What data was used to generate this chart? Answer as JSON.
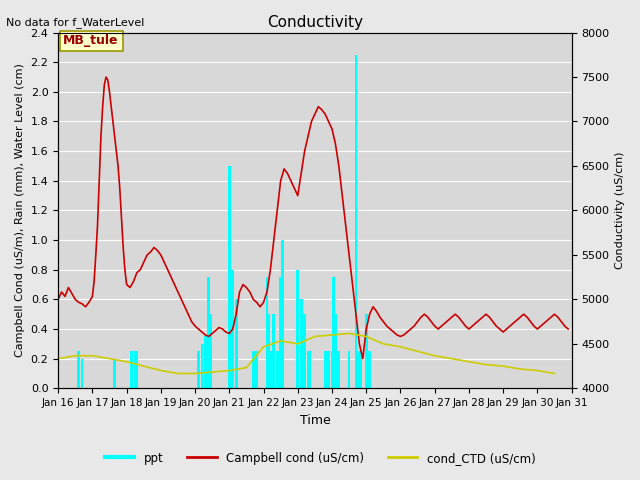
{
  "title": "Conductivity",
  "top_left_text": "No data for f_WaterLevel",
  "station_label": "MB_tule",
  "xlabel": "Time",
  "ylabel_left": "Campbell Cond (uS/m), Rain (mm), Water Level (cm)",
  "ylabel_right": "Conductivity (uS/cm)",
  "xlim": [
    0,
    15.0
  ],
  "ylim_left": [
    0,
    2.4
  ],
  "ylim_right": [
    4000,
    8000
  ],
  "xtick_labels": [
    "Jan 16",
    "Jan 17",
    "Jan 18",
    "Jan 19",
    "Jan 20",
    "Jan 21",
    "Jan 22",
    "Jan 23",
    "Jan 24",
    "Jan 25",
    "Jan 26",
    "Jan 27",
    "Jan 28",
    "Jan 29",
    "Jan 30",
    "Jan 31"
  ],
  "xtick_positions": [
    0,
    1,
    2,
    3,
    4,
    5,
    6,
    7,
    8,
    9,
    10,
    11,
    12,
    13,
    14,
    15
  ],
  "yticks_left": [
    0.0,
    0.2,
    0.4,
    0.6,
    0.8,
    1.0,
    1.2,
    1.4,
    1.6,
    1.8,
    2.0,
    2.2,
    2.4
  ],
  "yticks_right": [
    4000,
    4500,
    5000,
    5500,
    6000,
    6500,
    7000,
    7500,
    8000
  ],
  "bg_color": "#e8e8e8",
  "plot_bg_color": "#d8d8d8",
  "grid_color": "#ffffff",
  "legend_entries": [
    "ppt",
    "Campbell cond (uS/cm)",
    "cond_CTD (uS/cm)"
  ],
  "legend_colors": [
    "#00ffff",
    "#cc0000",
    "#cccc00"
  ],
  "campbell_color": "#cc0000",
  "ctd_color": "#cccc00",
  "ppt_color": "#00ffff",
  "campbell_data_x": [
    0.0,
    0.1,
    0.2,
    0.3,
    0.4,
    0.5,
    0.6,
    0.7,
    0.8,
    0.9,
    1.0,
    1.05,
    1.1,
    1.15,
    1.2,
    1.25,
    1.3,
    1.35,
    1.4,
    1.45,
    1.5,
    1.55,
    1.6,
    1.65,
    1.7,
    1.75,
    1.8,
    1.85,
    1.9,
    1.95,
    2.0,
    2.1,
    2.2,
    2.3,
    2.4,
    2.5,
    2.6,
    2.7,
    2.8,
    2.9,
    3.0,
    3.1,
    3.2,
    3.3,
    3.4,
    3.5,
    3.6,
    3.7,
    3.8,
    3.9,
    4.0,
    4.1,
    4.2,
    4.3,
    4.4,
    4.5,
    4.6,
    4.7,
    4.8,
    4.9,
    5.0,
    5.1,
    5.2,
    5.3,
    5.4,
    5.5,
    5.6,
    5.7,
    5.8,
    5.9,
    6.0,
    6.1,
    6.2,
    6.3,
    6.4,
    6.5,
    6.6,
    6.7,
    6.8,
    6.9,
    7.0,
    7.1,
    7.2,
    7.3,
    7.4,
    7.5,
    7.6,
    7.7,
    7.8,
    7.9,
    8.0,
    8.1,
    8.2,
    8.3,
    8.4,
    8.5,
    8.6,
    8.7,
    8.8,
    8.9,
    9.0,
    9.1,
    9.2,
    9.3,
    9.4,
    9.5,
    9.6,
    9.7,
    9.8,
    9.9,
    10.0,
    10.1,
    10.2,
    10.3,
    10.4,
    10.5,
    10.6,
    10.7,
    10.8,
    10.9,
    11.0,
    11.1,
    11.2,
    11.3,
    11.4,
    11.5,
    11.6,
    11.7,
    11.8,
    11.9,
    12.0,
    12.1,
    12.2,
    12.3,
    12.4,
    12.5,
    12.6,
    12.7,
    12.8,
    12.9,
    13.0,
    13.1,
    13.2,
    13.3,
    13.4,
    13.5,
    13.6,
    13.7,
    13.8,
    13.9,
    14.0,
    14.1,
    14.2,
    14.3,
    14.4,
    14.5,
    14.6,
    14.7,
    14.8,
    14.9
  ],
  "campbell_data_y": [
    0.6,
    0.65,
    0.62,
    0.68,
    0.64,
    0.6,
    0.58,
    0.57,
    0.55,
    0.58,
    0.62,
    0.72,
    0.9,
    1.1,
    1.4,
    1.7,
    1.9,
    2.05,
    2.1,
    2.08,
    2.0,
    1.9,
    1.8,
    1.7,
    1.6,
    1.5,
    1.35,
    1.15,
    0.95,
    0.8,
    0.7,
    0.68,
    0.72,
    0.78,
    0.8,
    0.85,
    0.9,
    0.92,
    0.95,
    0.93,
    0.9,
    0.85,
    0.8,
    0.75,
    0.7,
    0.65,
    0.6,
    0.55,
    0.5,
    0.45,
    0.42,
    0.4,
    0.38,
    0.36,
    0.35,
    0.37,
    0.39,
    0.41,
    0.4,
    0.38,
    0.37,
    0.4,
    0.5,
    0.65,
    0.7,
    0.68,
    0.65,
    0.6,
    0.58,
    0.55,
    0.58,
    0.65,
    0.8,
    1.0,
    1.2,
    1.4,
    1.48,
    1.45,
    1.4,
    1.35,
    1.3,
    1.45,
    1.6,
    1.7,
    1.8,
    1.85,
    1.9,
    1.88,
    1.85,
    1.8,
    1.75,
    1.65,
    1.5,
    1.3,
    1.1,
    0.9,
    0.7,
    0.5,
    0.3,
    0.2,
    0.4,
    0.5,
    0.55,
    0.52,
    0.48,
    0.45,
    0.42,
    0.4,
    0.38,
    0.36,
    0.35,
    0.36,
    0.38,
    0.4,
    0.42,
    0.45,
    0.48,
    0.5,
    0.48,
    0.45,
    0.42,
    0.4,
    0.42,
    0.44,
    0.46,
    0.48,
    0.5,
    0.48,
    0.45,
    0.42,
    0.4,
    0.42,
    0.44,
    0.46,
    0.48,
    0.5,
    0.48,
    0.45,
    0.42,
    0.4,
    0.38,
    0.4,
    0.42,
    0.44,
    0.46,
    0.48,
    0.5,
    0.48,
    0.45,
    0.42,
    0.4,
    0.42,
    0.44,
    0.46,
    0.48,
    0.5,
    0.48,
    0.45,
    0.42,
    0.4
  ],
  "ctd_data_x": [
    0.0,
    0.5,
    1.0,
    1.5,
    2.0,
    2.5,
    3.0,
    3.5,
    4.0,
    4.5,
    5.0,
    5.5,
    6.0,
    6.5,
    7.0,
    7.5,
    8.0,
    8.5,
    9.0,
    9.5,
    10.0,
    10.5,
    11.0,
    11.5,
    12.0,
    12.5,
    13.0,
    13.5,
    14.0,
    14.5
  ],
  "ctd_data_y": [
    0.2,
    0.22,
    0.22,
    0.2,
    0.18,
    0.15,
    0.12,
    0.1,
    0.1,
    0.11,
    0.12,
    0.14,
    0.28,
    0.32,
    0.3,
    0.35,
    0.36,
    0.37,
    0.35,
    0.3,
    0.28,
    0.25,
    0.22,
    0.2,
    0.18,
    0.16,
    0.15,
    0.13,
    0.12,
    0.1
  ],
  "ppt_x": [
    0.6,
    0.7,
    1.65,
    2.15,
    2.25,
    2.3,
    4.1,
    4.2,
    4.3,
    4.35,
    4.4,
    4.45,
    5.0,
    5.1,
    5.2,
    5.7,
    5.8,
    6.1,
    6.15,
    6.2,
    6.25,
    6.3,
    6.4,
    6.45,
    6.5,
    6.55,
    7.0,
    7.1,
    7.2,
    7.3,
    7.35,
    7.8,
    7.9,
    8.0,
    8.05,
    8.1,
    8.15,
    8.2,
    8.5,
    8.7,
    8.75,
    8.8,
    8.85,
    9.0,
    9.1
  ],
  "ppt_heights": [
    0.25,
    0.2,
    0.2,
    0.25,
    0.25,
    0.25,
    0.25,
    0.3,
    0.35,
    0.35,
    0.75,
    0.5,
    1.5,
    0.8,
    0.6,
    0.25,
    0.25,
    0.75,
    0.5,
    0.25,
    0.25,
    0.5,
    0.25,
    0.25,
    0.75,
    1.0,
    0.8,
    0.6,
    0.5,
    0.25,
    0.25,
    0.25,
    0.25,
    0.25,
    0.75,
    0.5,
    0.25,
    0.25,
    0.25,
    2.25,
    0.25,
    0.25,
    0.25,
    0.5,
    0.25
  ]
}
